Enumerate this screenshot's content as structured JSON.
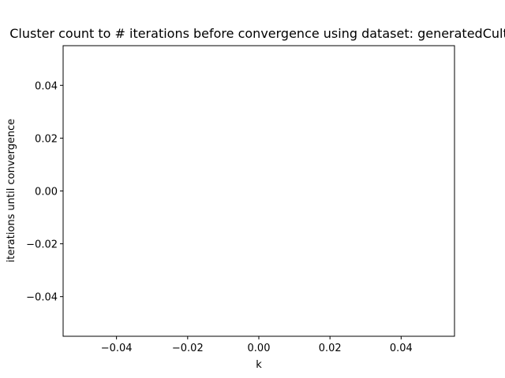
{
  "chart_data": {
    "type": "line",
    "title": "Cluster count to # iterations before convergence using dataset: generatedCult",
    "xlabel": "k",
    "ylabel": "iterations until convergence",
    "x": [],
    "series": [
      {
        "values": []
      }
    ],
    "xlim": [
      -0.055,
      0.055
    ],
    "ylim": [
      -0.055,
      0.055
    ],
    "xticks": [
      -0.04,
      -0.02,
      0.0,
      0.02,
      0.04
    ],
    "xtick_labels": [
      "−0.04",
      "−0.02",
      "0.00",
      "0.02",
      "0.04"
    ],
    "yticks": [
      -0.04,
      -0.02,
      0.0,
      0.02,
      0.04
    ],
    "ytick_labels": [
      "−0.04",
      "−0.02",
      "0.00",
      "0.02",
      "0.04"
    ],
    "grid": false,
    "legend": "none"
  }
}
